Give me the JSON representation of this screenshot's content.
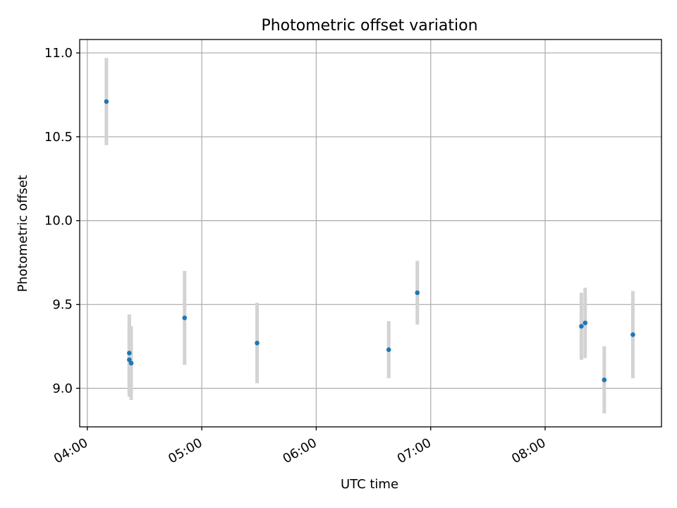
{
  "chart_data": {
    "type": "scatter",
    "title": "Photometric offset variation",
    "xlabel": "UTC time",
    "ylabel": "Photometric offset",
    "x_unit": "UTC time (HH:MM)",
    "xlim": [
      "03:56",
      "09:01"
    ],
    "ylim": [
      8.77,
      11.08
    ],
    "x_ticks": [
      "04:00",
      "05:00",
      "06:00",
      "07:00",
      "08:00"
    ],
    "y_ticks": [
      "9.0",
      "9.5",
      "10.0",
      "10.5",
      "11.0"
    ],
    "grid": true,
    "point_color": "#1f77b4",
    "errorbar_color": "#d3d3d3",
    "points": [
      {
        "x": "04:10",
        "y": 10.71,
        "err": 0.26
      },
      {
        "x": "04:22",
        "y": 9.21,
        "err": 0.23
      },
      {
        "x": "04:22",
        "y": 9.17,
        "err": 0.22
      },
      {
        "x": "04:23",
        "y": 9.15,
        "err": 0.22
      },
      {
        "x": "04:51",
        "y": 9.42,
        "err": 0.28
      },
      {
        "x": "05:29",
        "y": 9.27,
        "err": 0.24
      },
      {
        "x": "06:38",
        "y": 9.23,
        "err": 0.17
      },
      {
        "x": "06:53",
        "y": 9.57,
        "err": 0.19
      },
      {
        "x": "08:19",
        "y": 9.37,
        "err": 0.2
      },
      {
        "x": "08:21",
        "y": 9.39,
        "err": 0.21
      },
      {
        "x": "08:31",
        "y": 9.05,
        "err": 0.2
      },
      {
        "x": "08:46",
        "y": 9.32,
        "err": 0.26
      }
    ]
  }
}
